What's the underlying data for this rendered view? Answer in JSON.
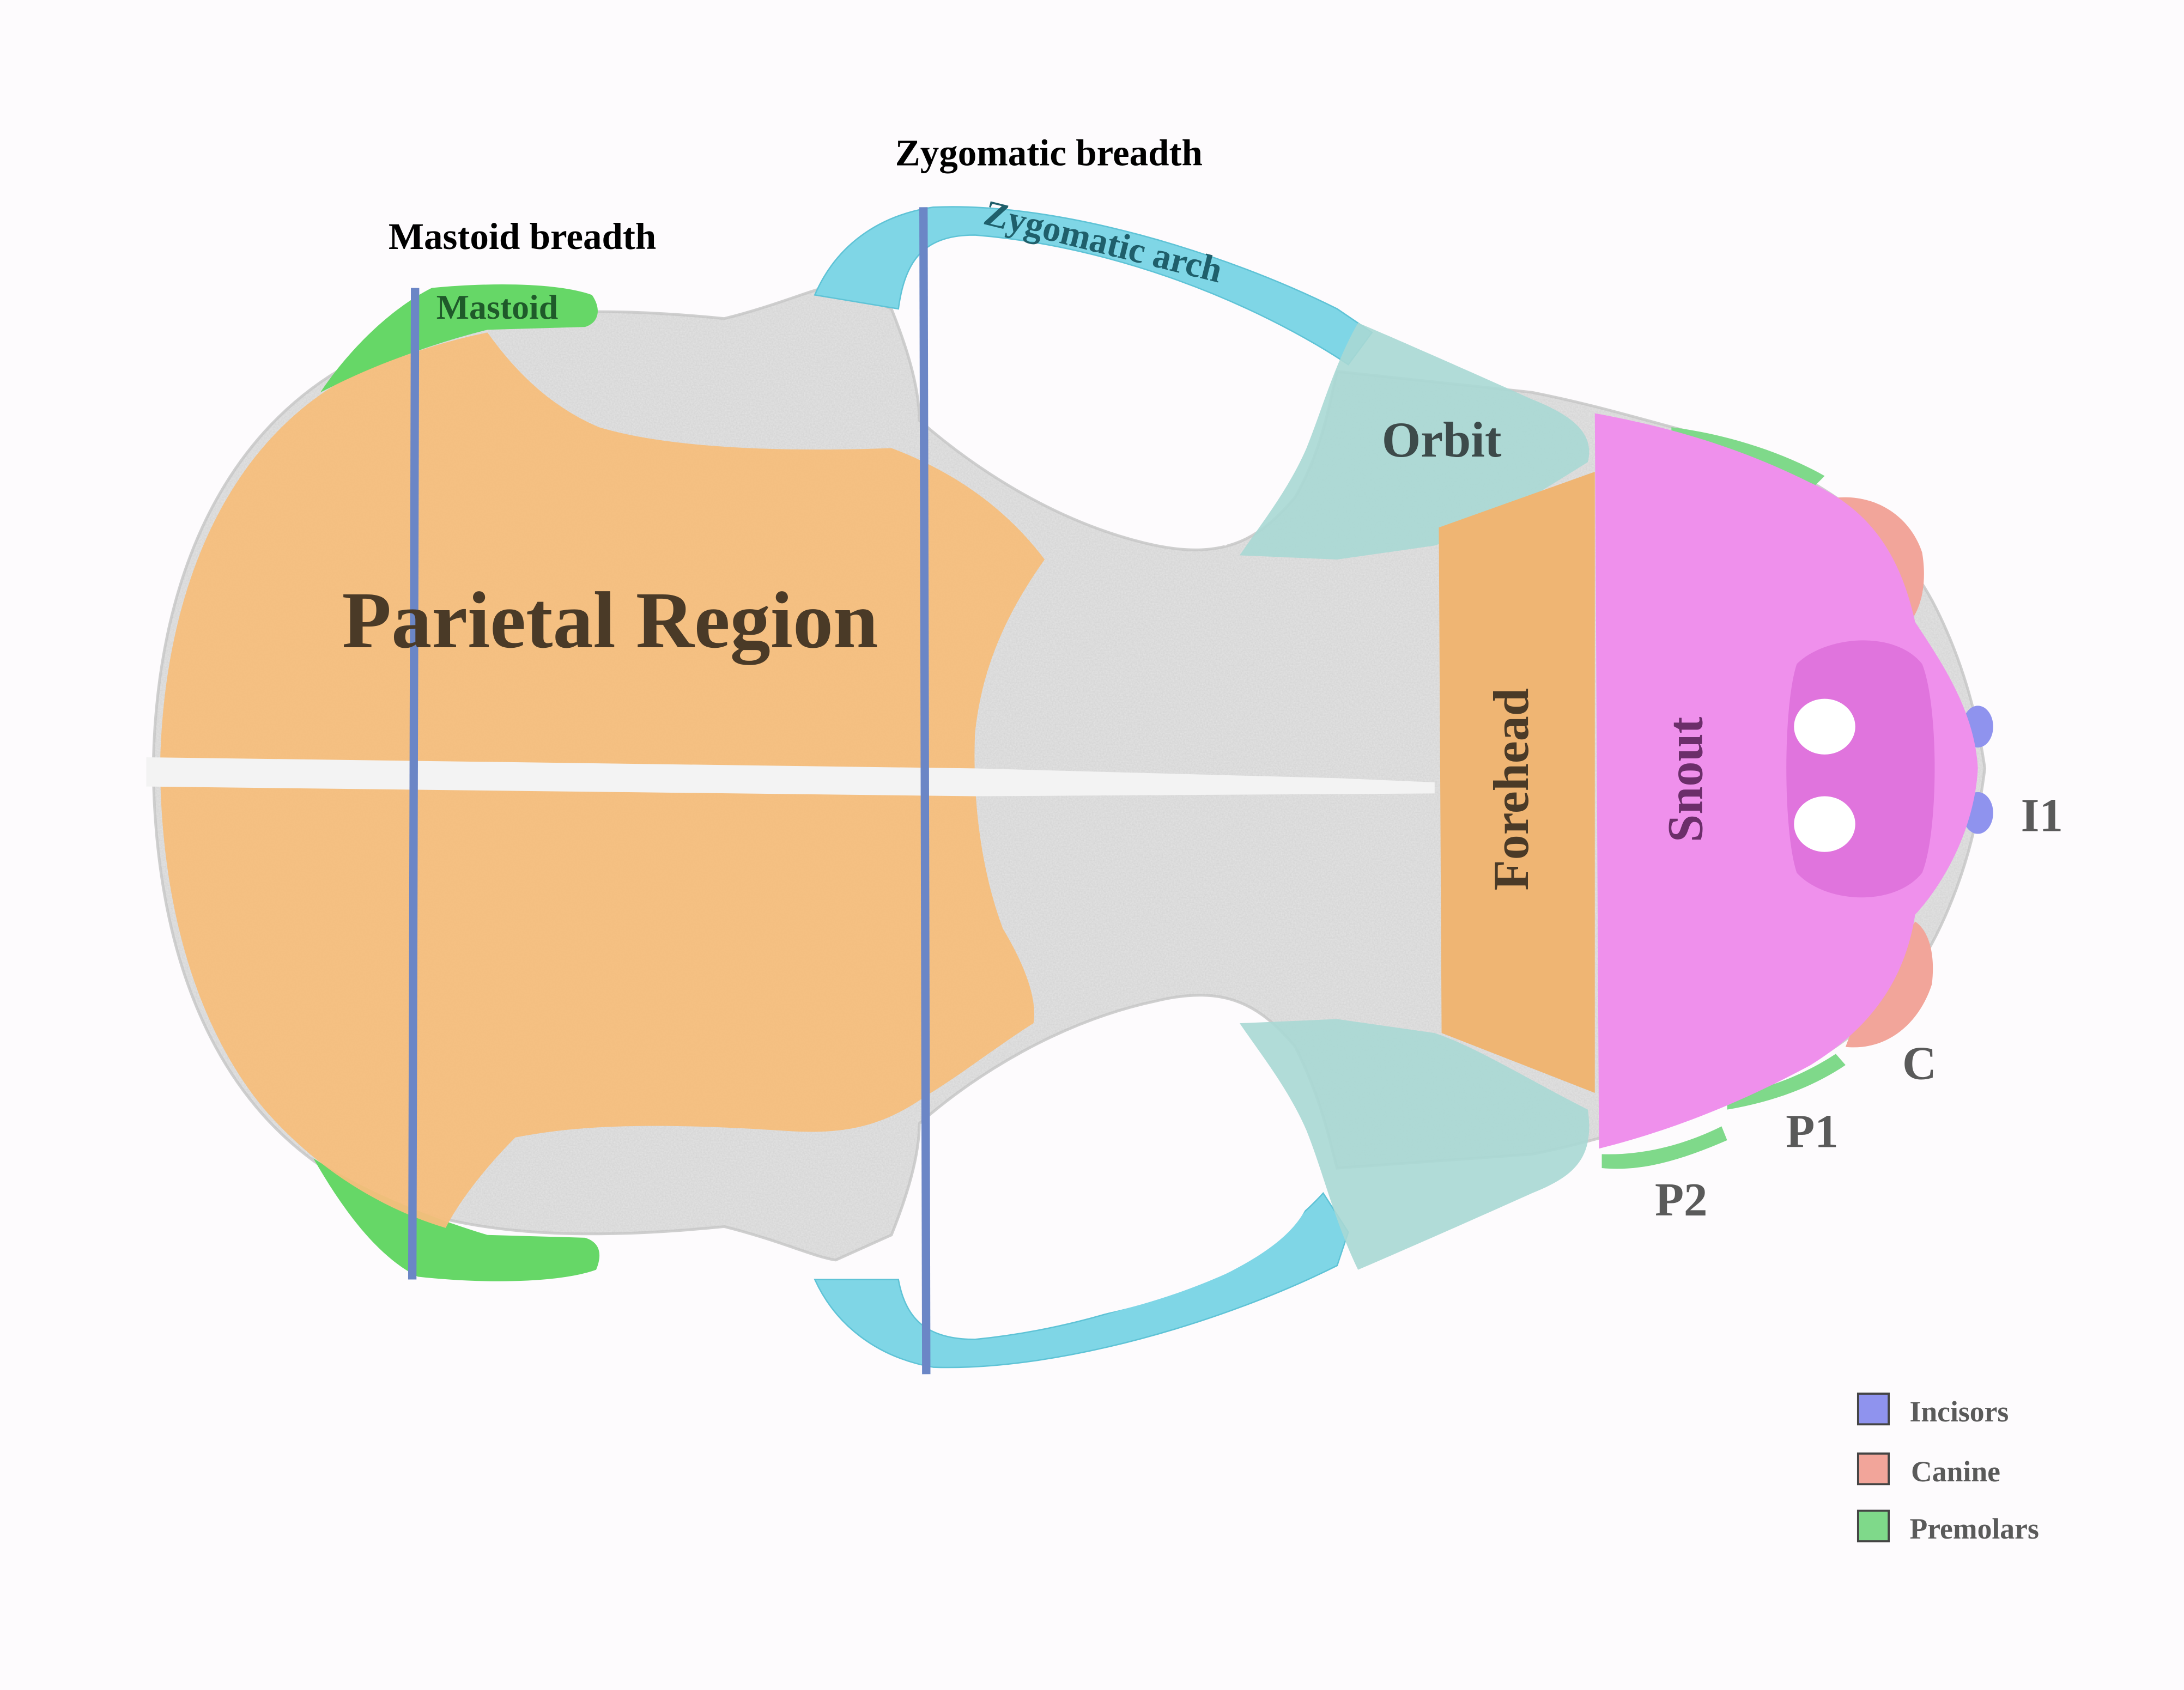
{
  "measurements": {
    "zygomatic_breadth": "Zygomatic breadth",
    "mastoid_breadth": "Mastoid breadth"
  },
  "regions": {
    "parietal": "Parietal Region",
    "mastoid": "Mastoid",
    "zygomatic_arch": "Zygomatic arch",
    "orbit": "Orbit",
    "forehead": "Forehead",
    "snout": "Snout"
  },
  "teeth": {
    "i1": "I1",
    "c": "C",
    "p1": "P1",
    "p2": "P2"
  },
  "legend": {
    "items": [
      {
        "label": "Incisors",
        "color": "#8f93ee"
      },
      {
        "label": "Canine",
        "color": "#f2a59a"
      },
      {
        "label": "Premolars",
        "color": "#7fd98a"
      }
    ]
  },
  "colors": {
    "parietal": "#f5be7c",
    "forehead": "#efb573",
    "snout": "#ef90ec",
    "orbit": "#a9d8d4",
    "zygomatic": "#7fd6e6",
    "mastoid": "#66d767",
    "measure_line": "#6b86c6",
    "bone": "#e3e3e3",
    "text_dark": "#4a3a27",
    "text_gray": "#5a5a5a"
  }
}
